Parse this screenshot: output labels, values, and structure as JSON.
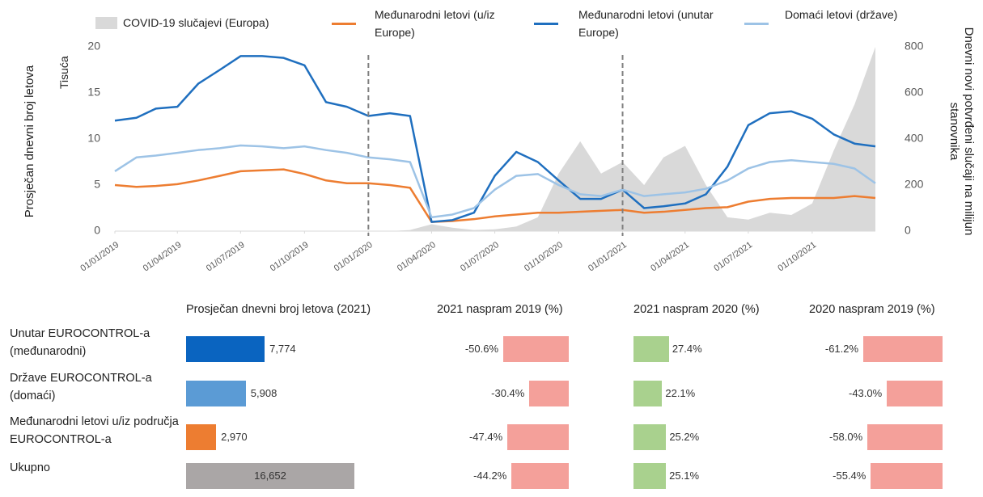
{
  "chart_data": {
    "type": "line",
    "series": [
      {
        "name": "COVID-19 slučajevi (Europa)",
        "type": "area",
        "axis": "y2",
        "color": "#d9d9d9",
        "values": [
          0,
          0,
          0,
          0,
          0,
          0,
          0,
          0,
          0,
          0,
          0,
          0,
          0,
          0,
          5,
          30,
          15,
          5,
          8,
          20,
          60,
          250,
          390,
          250,
          300,
          200,
          320,
          370,
          200,
          60,
          50,
          80,
          70,
          120,
          350,
          550,
          800
        ]
      },
      {
        "name": "Međunarodni letovi (u/iz Europe)",
        "color": "#ed7d31",
        "values": [
          5,
          4.8,
          4.9,
          5.1,
          5.5,
          6,
          6.5,
          6.6,
          6.7,
          6.2,
          5.5,
          5.2,
          5.2,
          5.0,
          4.7,
          1.0,
          1.1,
          1.3,
          1.6,
          1.8,
          2.0,
          2.0,
          2.1,
          2.2,
          2.3,
          2.0,
          2.1,
          2.3,
          2.5,
          2.6,
          3.2,
          3.5,
          3.6,
          3.6,
          3.6,
          3.8,
          3.6
        ]
      },
      {
        "name": "Međunarodni letovi (unutar Europe)",
        "color": "#1f6fbf",
        "values": [
          12,
          12.3,
          13.3,
          13.5,
          16,
          17.5,
          19,
          19,
          18.8,
          18,
          14,
          13.5,
          12.5,
          12.8,
          12.5,
          1,
          1.2,
          2,
          6,
          8.6,
          7.5,
          5.5,
          3.5,
          3.5,
          4.5,
          2.5,
          2.7,
          3,
          4,
          7,
          11.5,
          12.8,
          13,
          12.2,
          10.5,
          9.5,
          9.2
        ]
      },
      {
        "name": "Domaći letovi (države)",
        "color": "#9dc3e6",
        "values": [
          6.5,
          8.0,
          8.2,
          8.5,
          8.8,
          9.0,
          9.3,
          9.2,
          9.0,
          9.2,
          8.8,
          8.5,
          8.0,
          7.8,
          7.5,
          1.5,
          1.8,
          2.5,
          4.5,
          6.0,
          6.2,
          5.0,
          4.0,
          3.8,
          4.5,
          3.8,
          4.0,
          4.2,
          4.6,
          5.5,
          6.8,
          7.5,
          7.7,
          7.5,
          7.3,
          6.8,
          5.2
        ]
      }
    ],
    "x": [
      "01/01/2019",
      "01/02/2019",
      "01/03/2019",
      "01/04/2019",
      "01/05/2019",
      "01/06/2019",
      "01/07/2019",
      "01/08/2019",
      "01/09/2019",
      "01/10/2019",
      "01/11/2019",
      "01/12/2019",
      "01/01/2020",
      "01/02/2020",
      "01/03/2020",
      "01/04/2020",
      "01/05/2020",
      "01/06/2020",
      "01/07/2020",
      "01/08/2020",
      "01/09/2020",
      "01/10/2020",
      "01/11/2020",
      "01/12/2020",
      "01/01/2021",
      "01/02/2021",
      "01/03/2021",
      "01/04/2021",
      "01/05/2021",
      "01/06/2021",
      "01/07/2021",
      "01/08/2021",
      "01/09/2021",
      "01/10/2021",
      "01/11/2021",
      "01/12/2021",
      "31/12/2021"
    ],
    "xlim": [
      "01/01/2019",
      "31/12/2021"
    ],
    "xticks": [
      "01/01/2019",
      "01/04/2019",
      "01/07/2019",
      "01/10/2019",
      "01/01/2020",
      "01/04/2020",
      "01/07/2020",
      "01/10/2020",
      "01/01/2021",
      "01/04/2021",
      "01/07/2021",
      "01/10/2021"
    ],
    "ylim": [
      0,
      20
    ],
    "yticks": [
      0,
      5,
      10,
      15,
      20
    ],
    "y2lim": [
      0,
      800
    ],
    "y2ticks": [
      0,
      200,
      400,
      600,
      800
    ],
    "y_unit": "Tisuća",
    "y_label": "Prosječan dnevni broj letova",
    "y2_label": "Dnevni novi potvrđeni slučaji na milijun stanovnika",
    "vlines": [
      "01/01/2020",
      "01/01/2021"
    ]
  },
  "table": {
    "columns": [
      "Prosječan dnevni broj letova (2021)",
      "2021 naspram 2019 (%)",
      "2021 naspram 2020 (%)",
      "2020 naspram 2019 (%)"
    ],
    "positive_color": "#a9d18e",
    "negative_color": "#f4a09a",
    "rows": [
      {
        "label": "Unutar EUROCONTROL-a (međunarodni)",
        "color": "#0a64c0",
        "values": [
          7774,
          -50.6,
          27.4,
          -61.2
        ],
        "value_labels": [
          "7,774",
          "-50.6%",
          "27.4%",
          "-61.2%"
        ]
      },
      {
        "label": "Države EUROCONTROL-a (domaći)",
        "color": "#5b9bd5",
        "values": [
          5908,
          -30.4,
          22.1,
          -43.0
        ],
        "value_labels": [
          "5,908",
          "-30.4%",
          "22.1%",
          "-43.0%"
        ]
      },
      {
        "label": "Međunarodni letovi u/iz područja EUROCONTROL-a",
        "color": "#ed7d31",
        "values": [
          2970,
          -47.4,
          25.2,
          -58.0
        ],
        "value_labels": [
          "2,970",
          "-47.4%",
          "25.2%",
          "-58.0%"
        ]
      },
      {
        "label": "Ukupno",
        "color": "#aaa6a6",
        "values": [
          16652,
          -44.2,
          25.1,
          -55.4
        ],
        "value_labels": [
          "16,652",
          "-44.2%",
          "25.1%",
          "-55.4%"
        ]
      }
    ]
  }
}
